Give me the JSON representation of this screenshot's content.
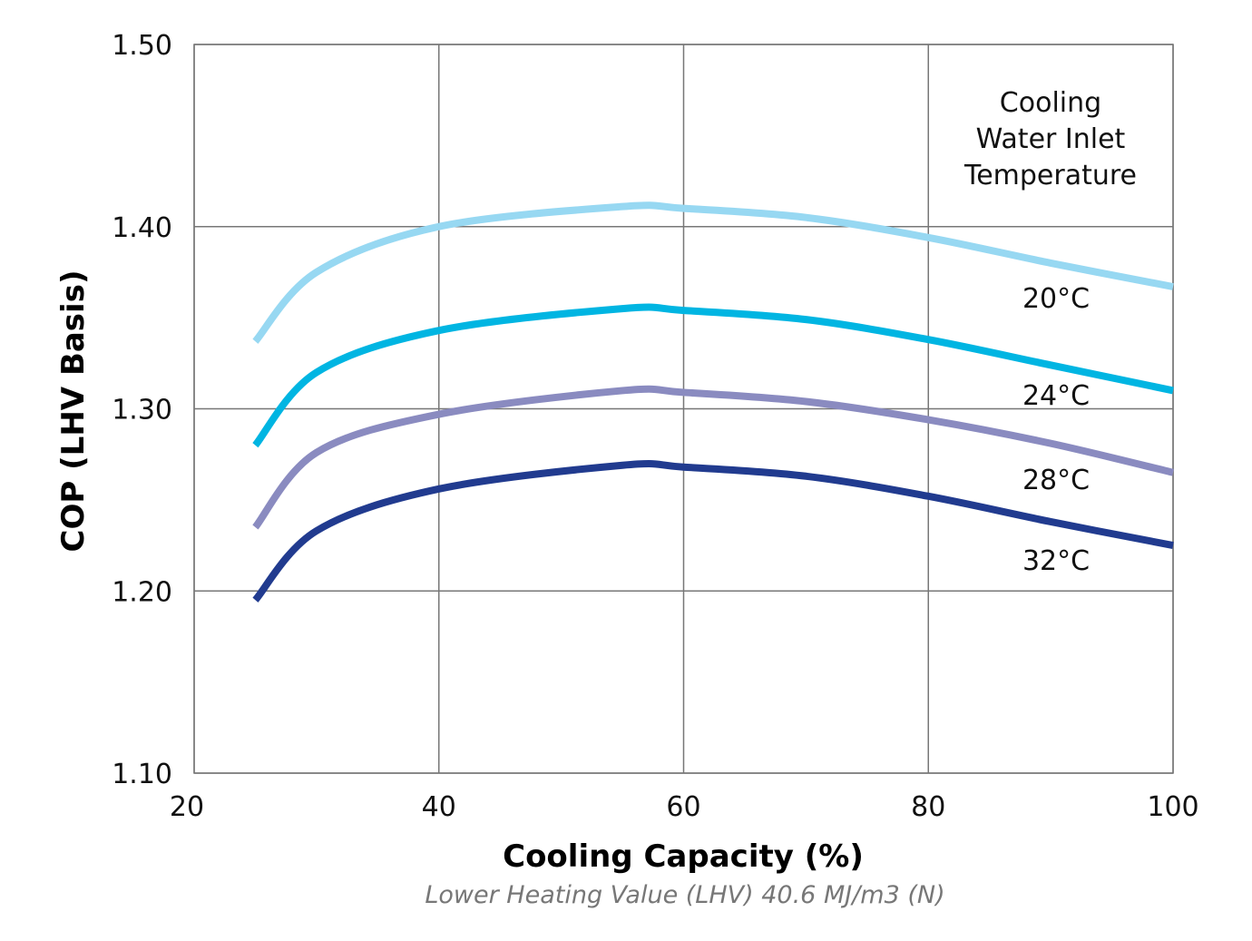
{
  "chart_data": {
    "type": "line",
    "xlabel": "Cooling Capacity (%)",
    "ylabel": "COP (LHV Basis)",
    "subtitle": "Lower Heating Value (LHV) 40.6 MJ/m3 (N)",
    "xlim": [
      20,
      100
    ],
    "ylim": [
      1.1,
      1.5
    ],
    "xticks": [
      "20",
      "40",
      "60",
      "80",
      "100"
    ],
    "yticks": [
      "1.10",
      "1.20",
      "1.30",
      "1.40",
      "1.50"
    ],
    "grid": true,
    "legend_title": [
      "Cooling",
      "Water Inlet",
      "Temperature"
    ],
    "legend_placement": "right",
    "x": [
      25,
      30,
      40,
      55,
      60,
      70,
      80,
      90,
      100
    ],
    "series": [
      {
        "name": "20°C",
        "color": "#97d8f2",
        "values": [
          1.337,
          1.375,
          1.4,
          1.411,
          1.41,
          1.405,
          1.394,
          1.38,
          1.367
        ]
      },
      {
        "name": "24°C",
        "color": "#00b5e2",
        "values": [
          1.28,
          1.32,
          1.343,
          1.355,
          1.354,
          1.349,
          1.338,
          1.324,
          1.31
        ]
      },
      {
        "name": "28°C",
        "color": "#8a8bc0",
        "values": [
          1.235,
          1.276,
          1.297,
          1.31,
          1.309,
          1.304,
          1.294,
          1.281,
          1.265
        ]
      },
      {
        "name": "32°C",
        "color": "#213b8f",
        "values": [
          1.195,
          1.233,
          1.256,
          1.269,
          1.268,
          1.263,
          1.252,
          1.238,
          1.225
        ]
      }
    ]
  }
}
